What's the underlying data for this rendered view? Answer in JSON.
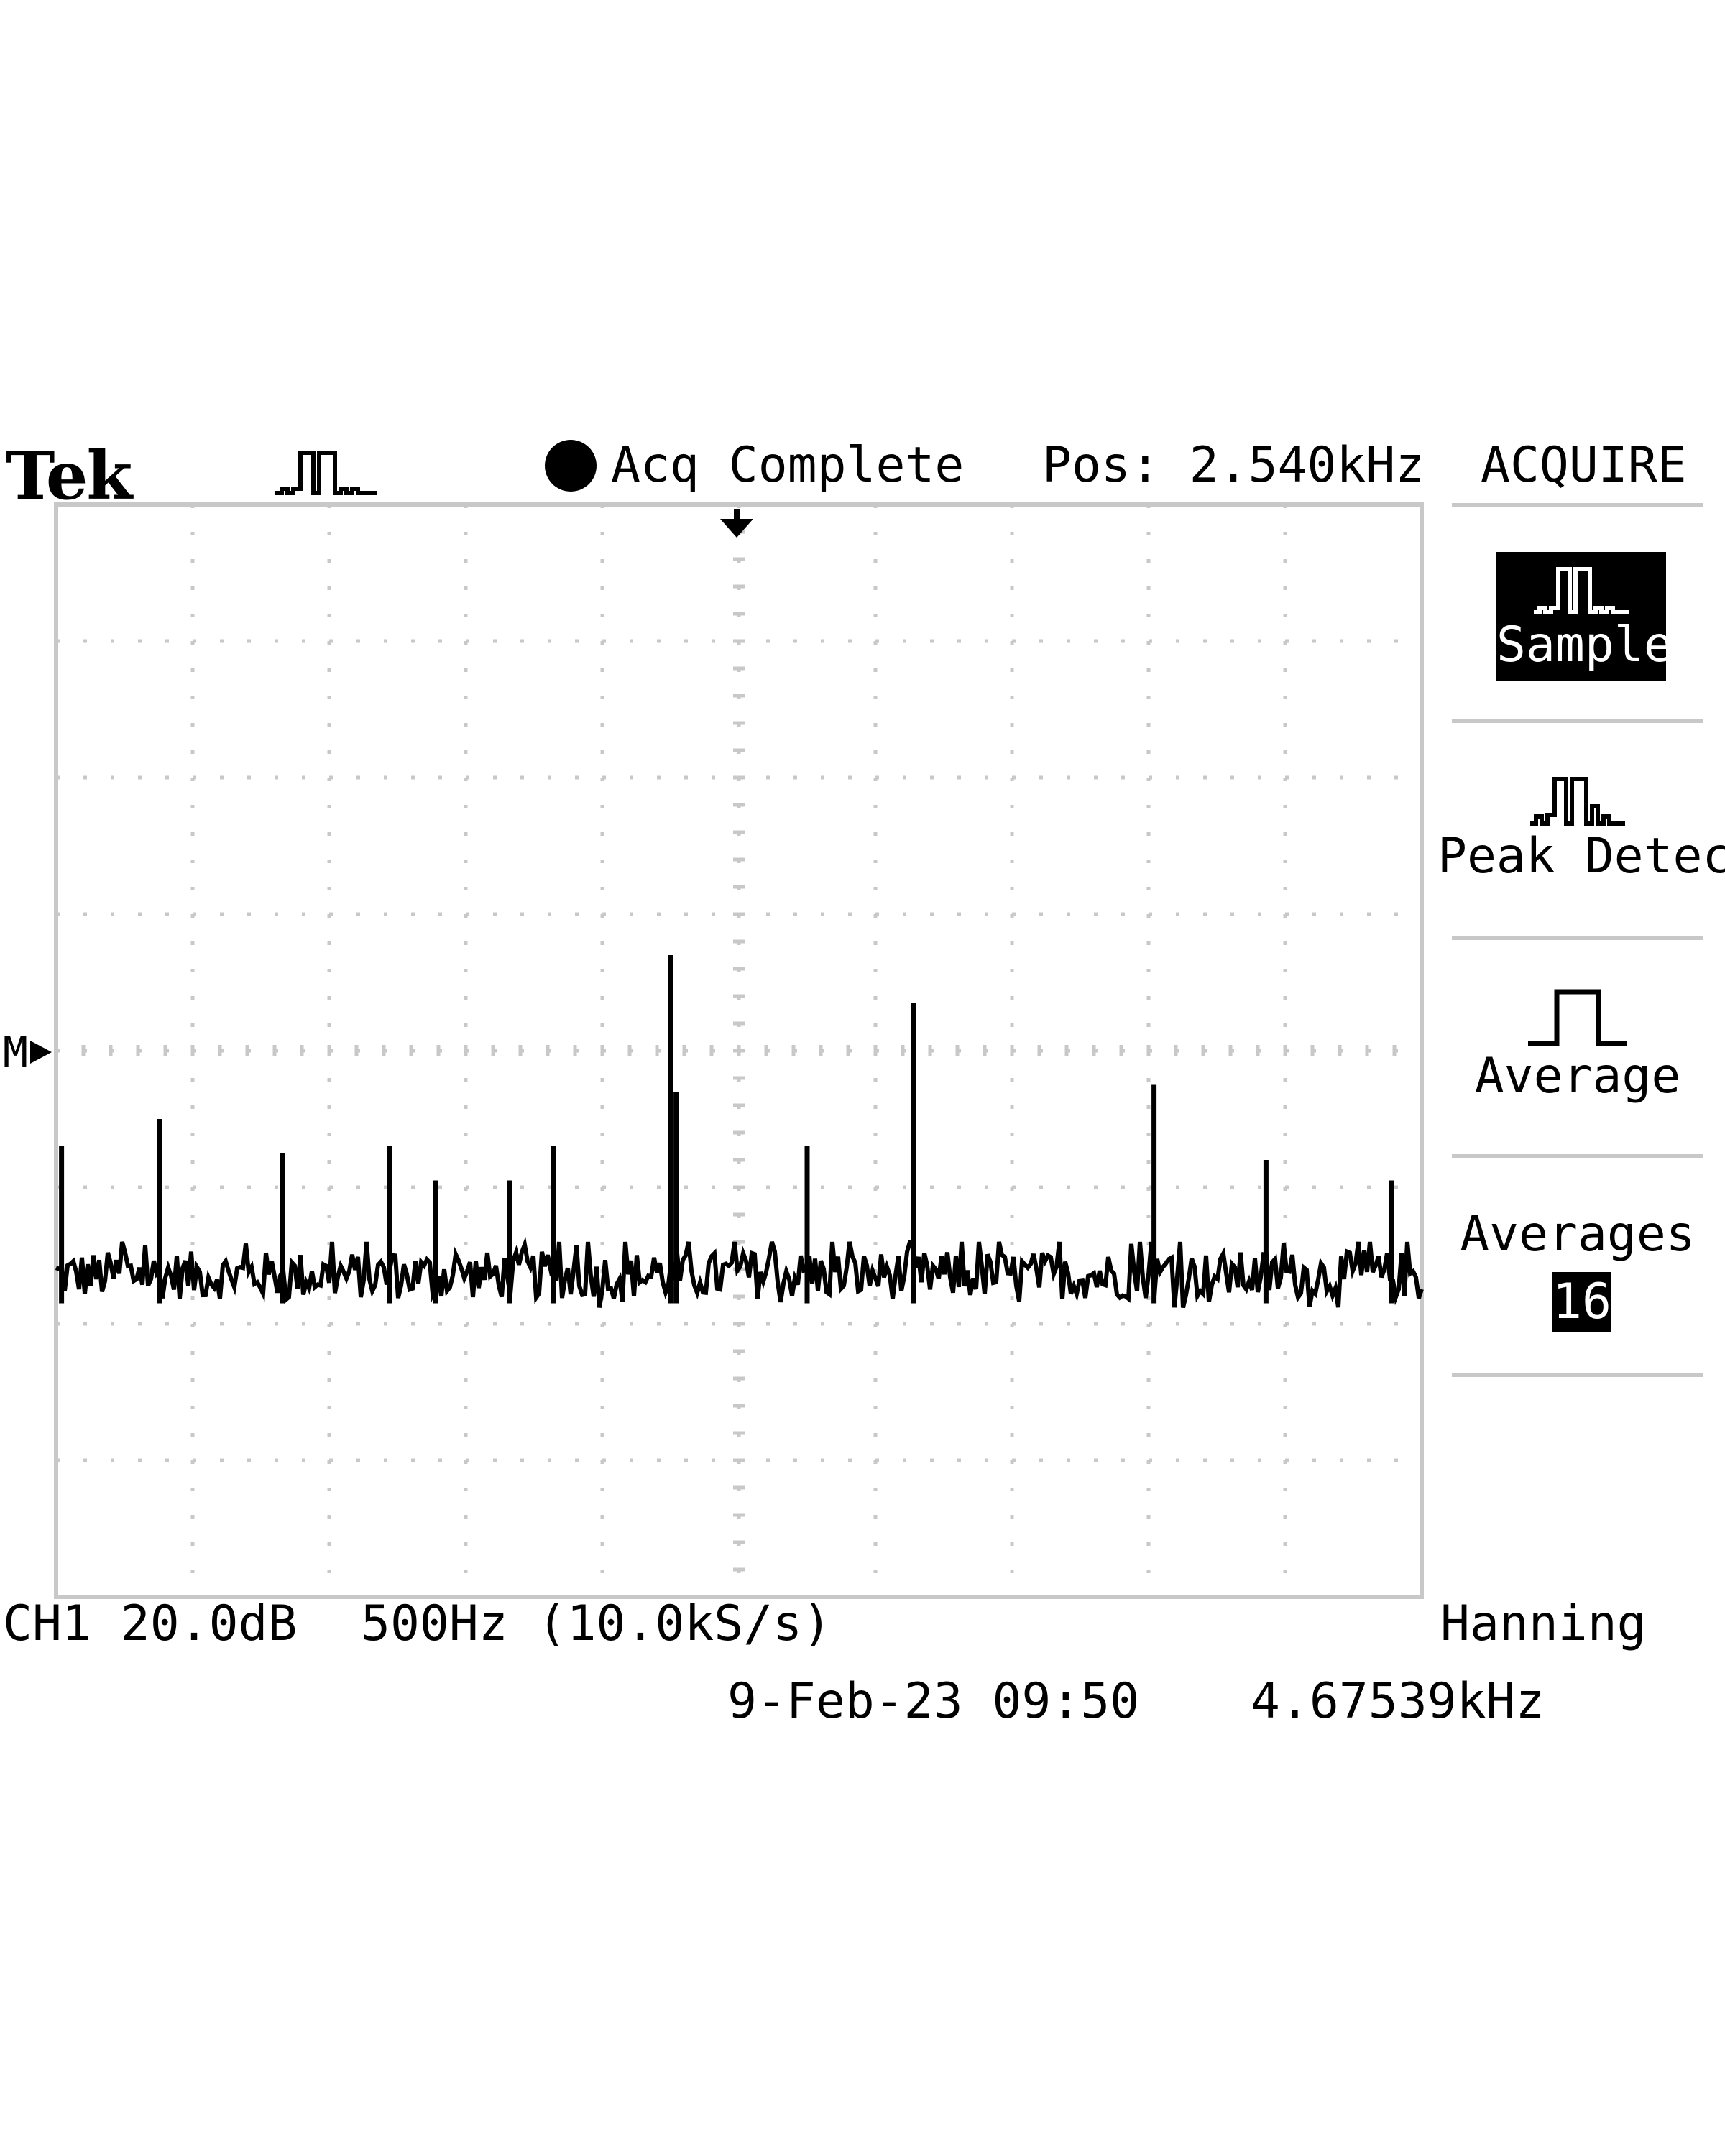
{
  "header": {
    "brand": "Tek",
    "acq_mode_icon": "sample-mode-icon",
    "status": "Acq Complete",
    "position": "Pos: 2.540kHz"
  },
  "menu": {
    "title": "ACQUIRE",
    "items": [
      {
        "label": "Sample",
        "icon": "sample-mode-icon",
        "selected": true
      },
      {
        "label": "Peak Detect",
        "icon": "peak-detect-icon",
        "selected": false
      },
      {
        "label": "Average",
        "icon": "average-pulse-icon",
        "selected": false
      },
      {
        "label": "Averages",
        "value": "16",
        "selected": false
      }
    ]
  },
  "footer": {
    "channel": "CH1 20.0dB",
    "span": "500Hz (10.0kS/s)",
    "window": "Hanning",
    "datetime": "9-Feb-23 09:50",
    "frequency": "4.67539kHz"
  },
  "markers": {
    "math_ref": "M"
  },
  "colors": {
    "background": "#ffffff",
    "trace": "#000000",
    "graticule": "#c8c8c8"
  },
  "chart_data": {
    "type": "line",
    "x_unit": "Hz",
    "x_center": 2540,
    "x_per_div": 500,
    "xlim": [
      40,
      5040
    ],
    "y_unit": "dB",
    "y_per_div": 20,
    "noise_floor_level": -1.75,
    "noise_span": 0.35,
    "peaks": [
      {
        "x": 60,
        "level": -0.7
      },
      {
        "x": 420,
        "level": -0.5
      },
      {
        "x": 870,
        "level": -0.75
      },
      {
        "x": 1260,
        "level": -0.7
      },
      {
        "x": 1430,
        "level": -0.95
      },
      {
        "x": 1700,
        "level": -0.95
      },
      {
        "x": 1860,
        "level": -0.7
      },
      {
        "x": 2290,
        "level": 0.7
      },
      {
        "x": 2310,
        "level": -0.3
      },
      {
        "x": 2790,
        "level": -0.7
      },
      {
        "x": 3180,
        "level": 0.35
      },
      {
        "x": 4060,
        "level": -0.25
      },
      {
        "x": 4470,
        "level": -0.8
      },
      {
        "x": 4930,
        "level": -0.95
      }
    ]
  }
}
